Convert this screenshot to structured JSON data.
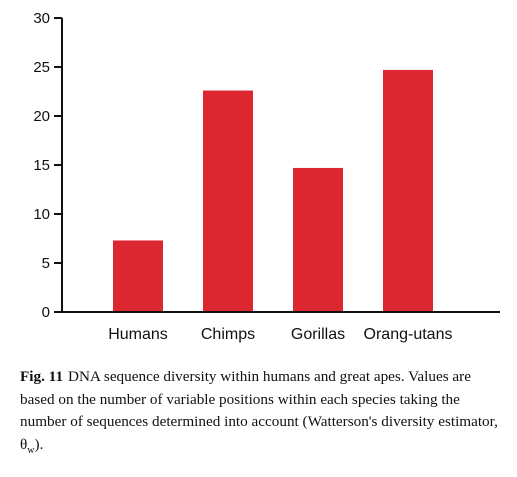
{
  "chart_data": {
    "type": "bar",
    "categories": [
      "Humans",
      "Chimps",
      "Gorillas",
      "Orang-utans"
    ],
    "values": [
      7.3,
      22.6,
      14.7,
      24.7
    ],
    "ylim": [
      0,
      30
    ],
    "yticks": [
      0,
      5,
      10,
      15,
      20,
      25,
      30
    ],
    "bar_color": "#dc2730",
    "axis_color": "#111111",
    "grid": false,
    "title": "",
    "xlabel": "",
    "ylabel": ""
  },
  "caption": {
    "fig_label": "Fig. 11",
    "text": "DNA sequence diversity within humans and great apes. Values are based on the number of variable positions within each species taking the number of sequences determined into account (Watterson's diversity estimator, θ",
    "subscript": "w",
    "suffix": ")."
  }
}
